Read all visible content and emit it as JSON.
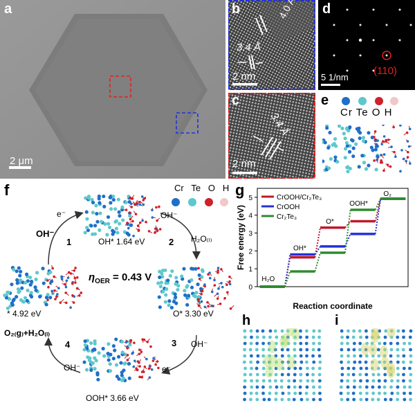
{
  "panels": {
    "a": {
      "label": "a",
      "scale": "2 μm"
    },
    "b": {
      "label": "b",
      "d1": "4.0 Å",
      "d2": "3.4 Å",
      "scale": "2 nm"
    },
    "c": {
      "label": "c",
      "d1": "3.4 Å",
      "scale": "2 nm"
    },
    "d": {
      "label": "d",
      "scale": "5 1/nm",
      "spot": "(110)"
    },
    "e": {
      "label": "e",
      "legend": [
        "Cr",
        "Te",
        "O",
        "H"
      ]
    },
    "f": {
      "label": "f",
      "legend": [
        "Cr",
        "Te",
        "O",
        "H"
      ],
      "steps": [
        {
          "num": "1",
          "reactant": "OH⁻",
          "product": "e⁻"
        },
        {
          "num": "2",
          "reactant": "OH⁻",
          "product": "H₂O₍ₗ₎"
        },
        {
          "num": "3",
          "reactant": "OH⁻",
          "product": "e⁻"
        },
        {
          "num": "4",
          "reactant": "OH⁻",
          "product": "O₂₍g₎+H₂O₍ₗ₎"
        }
      ],
      "states": {
        "oh": "OH* 1.64 eV",
        "o": "O* 3.30 eV",
        "ooh": "OOH* 3.66 eV",
        "bare": "* 4.92 eV"
      },
      "eta_symbol": "η",
      "eta_sub": "OER",
      "eta_value": " = 0.43 V"
    },
    "g": {
      "label": "g"
    },
    "h": {
      "label": "h"
    },
    "i": {
      "label": "i"
    }
  },
  "chart_data": {
    "type": "line",
    "xlabel": "Reaction coordinate",
    "ylabel": "Free energy (eV)",
    "ylim": [
      0,
      5.5
    ],
    "yticks": [
      0,
      1,
      2,
      3,
      4,
      5
    ],
    "categories": [
      "H₂O",
      "OH*",
      "O*",
      "OOH*",
      "O₂"
    ],
    "series": [
      {
        "name": "CrOOH/Cr₂Te₃",
        "color": "#c0182b",
        "values": [
          0,
          1.64,
          3.3,
          3.66,
          4.92
        ]
      },
      {
        "name": "CrOOH",
        "color": "#2431d6",
        "values": [
          0,
          1.8,
          2.25,
          2.95,
          4.92
        ]
      },
      {
        "name": "Cr₂Te₃",
        "color": "#2e8b2e",
        "values": [
          0,
          0.85,
          1.9,
          4.3,
          4.92
        ]
      }
    ],
    "legend_position": "top-left"
  }
}
